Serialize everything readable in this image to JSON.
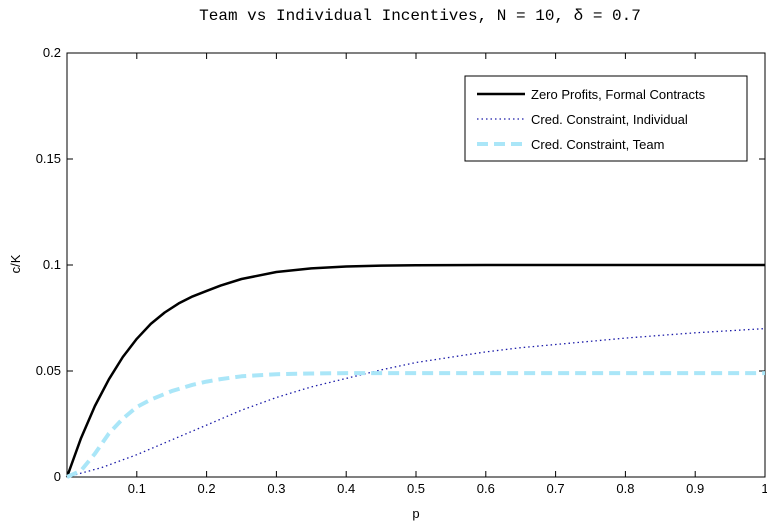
{
  "chart_data": {
    "type": "line",
    "title": "Team vs Individual Incentives, N = 10, δ = 0.7",
    "xlabel": "p",
    "ylabel": "c/K",
    "xlim": [
      0,
      1
    ],
    "ylim": [
      0,
      0.2
    ],
    "xticks": [
      0.1,
      0.2,
      0.3,
      0.4,
      0.5,
      0.6,
      0.7,
      0.8,
      0.9,
      1
    ],
    "xtick_labels": [
      "0.1",
      "0.2",
      "0.3",
      "0.4",
      "0.5",
      "0.6",
      "0.7",
      "0.8",
      "0.9",
      "1"
    ],
    "yticks": [
      0,
      0.05,
      0.1,
      0.15,
      0.2
    ],
    "ytick_labels": [
      "0",
      "0.05",
      "0.1",
      "0.15",
      "0.2"
    ],
    "grid": false,
    "legend_position": "top-right",
    "series": [
      {
        "name": "Zero Profits, Formal Contracts",
        "color": "#000000",
        "style": "solid",
        "x": [
          0,
          0.02,
          0.04,
          0.06,
          0.08,
          0.1,
          0.12,
          0.14,
          0.16,
          0.18,
          0.2,
          0.22,
          0.25,
          0.3,
          0.35,
          0.4,
          0.45,
          0.5,
          0.6,
          0.7,
          0.8,
          0.9,
          1.0
        ],
        "y": [
          0,
          0.0183,
          0.0335,
          0.0461,
          0.0566,
          0.0652,
          0.0722,
          0.0776,
          0.0819,
          0.0852,
          0.0878,
          0.0903,
          0.0934,
          0.0967,
          0.0984,
          0.0993,
          0.0997,
          0.0999,
          0.1,
          0.1,
          0.1,
          0.1,
          0.1
        ]
      },
      {
        "name": "Cred. Constraint, Individual",
        "color": "#1a1aa8",
        "style": "dotted",
        "x": [
          0,
          0.05,
          0.1,
          0.15,
          0.2,
          0.25,
          0.3,
          0.35,
          0.4,
          0.45,
          0.5,
          0.55,
          0.6,
          0.65,
          0.7,
          0.75,
          0.8,
          0.85,
          0.9,
          0.95,
          1.0
        ],
        "y": [
          0,
          0.0045,
          0.0105,
          0.0175,
          0.0245,
          0.0315,
          0.0375,
          0.0425,
          0.0465,
          0.0505,
          0.054,
          0.0565,
          0.059,
          0.061,
          0.0625,
          0.064,
          0.0655,
          0.0668,
          0.068,
          0.069,
          0.07
        ]
      },
      {
        "name": "Cred. Constraint, Team",
        "color": "#aae6f8",
        "style": "dashed",
        "x": [
          0,
          0.02,
          0.04,
          0.06,
          0.08,
          0.1,
          0.12,
          0.15,
          0.18,
          0.2,
          0.22,
          0.25,
          0.3,
          0.35,
          0.4,
          0.5,
          0.6,
          0.7,
          0.8,
          0.9,
          1.0
        ],
        "y": [
          0,
          0.003,
          0.011,
          0.0205,
          0.0275,
          0.033,
          0.0365,
          0.0405,
          0.0435,
          0.045,
          0.0462,
          0.0475,
          0.0485,
          0.0488,
          0.049,
          0.049,
          0.049,
          0.049,
          0.049,
          0.049,
          0.049
        ]
      }
    ]
  }
}
